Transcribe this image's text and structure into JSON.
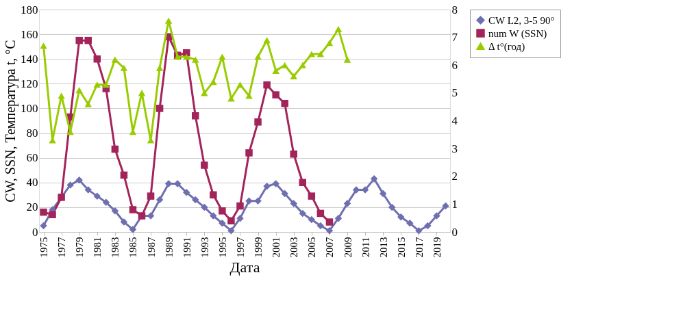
{
  "chart_data": {
    "type": "line",
    "xlabel": "Дата",
    "ylabel": "CW, SSN, Температура t, °C",
    "categories": [
      "1975",
      null,
      "1977",
      null,
      "1979",
      null,
      "1981",
      null,
      "1983",
      null,
      "1985",
      null,
      "1987",
      null,
      "1989",
      null,
      "1991",
      null,
      "1993",
      null,
      "1995",
      null,
      "1997",
      null,
      "1999",
      null,
      "2001",
      null,
      "2003",
      null,
      "2005",
      null,
      "2007",
      null,
      "2009",
      null,
      "2011",
      null,
      "2013",
      null,
      "2015",
      null,
      "2017",
      null,
      "2019",
      null
    ],
    "series": [
      {
        "name": "CW L2, 3-5 90°",
        "color": "#6f6fb0",
        "marker": "diamond",
        "values": [
          5,
          18,
          28,
          38,
          42,
          34,
          29,
          24,
          17,
          8,
          2,
          13,
          13,
          26,
          39,
          39,
          32,
          26,
          20,
          13,
          7,
          1,
          11,
          25,
          25,
          37,
          39,
          31,
          23,
          15,
          10,
          5,
          1,
          11,
          23,
          34,
          34,
          43,
          31,
          20,
          12,
          7,
          1,
          5,
          13,
          21
        ]
      },
      {
        "name": "num W (SSN)",
        "color": "#a3245a",
        "marker": "square",
        "values": [
          16,
          14,
          28,
          93,
          155,
          155,
          140,
          116,
          67,
          46,
          18,
          13,
          29,
          100,
          158,
          143,
          145,
          94,
          54,
          30,
          17,
          9,
          21,
          64,
          89,
          119,
          111,
          104,
          63,
          40,
          29,
          15,
          8,
          null,
          null,
          null,
          null,
          null,
          null,
          null,
          null,
          null,
          null,
          null,
          null,
          null
        ]
      },
      {
        "name": "Δ t°(год)",
        "color": "#99cc00",
        "marker": "triangle",
        "axis": "y2",
        "values": [
          6.7,
          3.3,
          4.9,
          3.6,
          5.1,
          4.6,
          5.3,
          5.3,
          6.2,
          5.9,
          3.6,
          5.0,
          3.3,
          5.9,
          7.6,
          6.3,
          6.3,
          6.2,
          5.0,
          5.4,
          6.3,
          4.8,
          5.3,
          4.9,
          6.3,
          6.9,
          5.8,
          6.0,
          5.6,
          6.0,
          6.4,
          6.4,
          6.8,
          7.3,
          6.2,
          null,
          null,
          null,
          null,
          null,
          null,
          null,
          null,
          null,
          null,
          null
        ]
      }
    ],
    "ylim": [
      0,
      180
    ],
    "yticks": [
      0,
      20,
      40,
      60,
      80,
      100,
      120,
      140,
      160,
      180
    ],
    "y2lim": [
      0,
      8
    ],
    "y2ticks": [
      0,
      1,
      2,
      3,
      4,
      5,
      6,
      7,
      8
    ],
    "grid": "y",
    "legend": "right",
    "line_style": "solid"
  }
}
